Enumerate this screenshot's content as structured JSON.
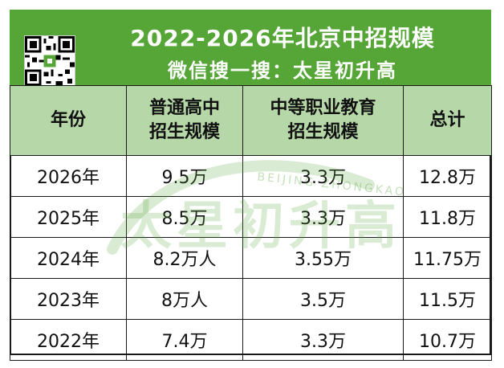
{
  "banner": {
    "title": "2022-2026年北京中招规模",
    "subtitle": "微信搜一搜：太星初升高"
  },
  "table": {
    "headers": [
      "年份",
      "普通高中\n招生规模",
      "中等职业教育\n招生规模",
      "总计"
    ],
    "rows": [
      [
        "2026年",
        "9.5万",
        "3.3万",
        "12.8万"
      ],
      [
        "2025年",
        "8.5万",
        "3.3万",
        "11.8万"
      ],
      [
        "2024年",
        "8.2万人",
        "3.55万",
        "11.75万"
      ],
      [
        "2023年",
        "8万人",
        "3.5万",
        "11.5万"
      ],
      [
        "2022年",
        "7.4万",
        "3.3万",
        "10.7万"
      ]
    ]
  },
  "watermark": {
    "text": "太星初升高",
    "subtext": "BEIJING ZHONGKAO"
  },
  "colors": {
    "banner_green": "#56a637",
    "header_green": "#b6d7a8",
    "border": "#1a1a1a"
  },
  "icons": {
    "qr": "qr-code-icon"
  }
}
